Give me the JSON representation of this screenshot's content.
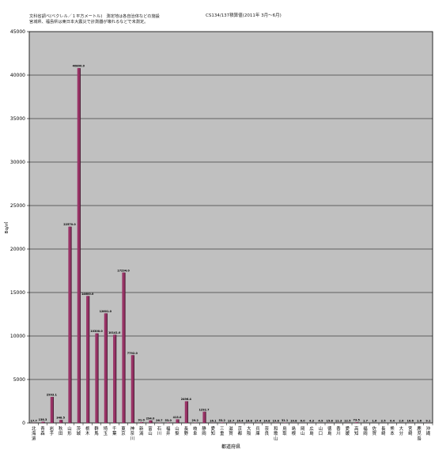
{
  "notes": {
    "line1": "文科省調べ(ベクレル／１平方メートル)　測定地は各自治体などの施設",
    "line2": "宮城県、福島県は東日本大震災で計測器が壊れるなどで未測定。",
    "title": "CS134/137積算値(2011年 3月～6月)"
  },
  "colors": {
    "plot_bg": "#c0c0c0",
    "bar_fill": "#993366",
    "bar_shadow": "#4a1832",
    "grid": "#000000"
  },
  "chart_data": {
    "type": "bar",
    "title": "CS134/137積算値(2011年 3月～6月)",
    "xlabel": "都道府県",
    "ylabel": "Bq/㎡",
    "ylim": [
      0,
      45000
    ],
    "yticks": [
      0,
      5000,
      10000,
      15000,
      20000,
      25000,
      30000,
      35000,
      40000,
      45000
    ],
    "grid": true,
    "legend": "none",
    "categories": [
      "北海道",
      "青森",
      "岩手",
      "秋田",
      "山形",
      "茨城",
      "栃木",
      "群馬",
      "埼玉",
      "千葉",
      "東京",
      "神奈川",
      "新潟",
      "富山",
      "石川",
      "福井",
      "山梨",
      "長野",
      "岐阜",
      "静岡",
      "愛知",
      "三重",
      "滋賀",
      "京都",
      "大阪",
      "兵庫",
      "奈良",
      "和歌山",
      "鳥取",
      "島根",
      "岡山",
      "広島",
      "山口",
      "徳島",
      "香川",
      "愛媛",
      "高知",
      "福岡",
      "佐賀",
      "長崎",
      "熊本",
      "大分",
      "宮崎",
      "鹿児島",
      "沖縄"
    ],
    "values": [
      17.7,
      138.3,
      2993.1,
      348.5,
      22570.0,
      40800.0,
      14600.0,
      10300.0,
      12601.0,
      10141.0,
      17294.0,
      7792.0,
      91.0,
      294.0,
      26.7,
      53.0,
      413.0,
      2496.4,
      29.2,
      1292.7,
      16.1,
      53.2,
      13.7,
      16.4,
      16.8,
      17.4,
      14.8,
      19.8,
      31.1,
      10.8,
      6.0,
      4.3,
      4.9,
      15.8,
      11.3,
      12.5,
      73.5,
      1.7,
      1.6,
      2.5,
      0.4,
      2.0,
      10.6,
      1.6,
      9.1
    ],
    "data_labels": [
      "17.7",
      "138.3",
      "2993.1",
      "348.5",
      "22570.0",
      "40800.0",
      "14600.0",
      "10300.0",
      "12601.0",
      "10141.0",
      "17294.0",
      "7792.0",
      "91.0",
      "294.0",
      "26.7",
      "53.0",
      "413.0",
      "2496.4",
      "29.2",
      "1292.7",
      "16.1",
      "53.2",
      "13.7",
      "16.4",
      "16.8",
      "17.4",
      "14.8",
      "19.8",
      "31.1",
      "10.8",
      "6.0",
      "4.3",
      "4.9",
      "15.8",
      "11.3",
      "12.5",
      "73.5",
      "1.7",
      "1.6",
      "2.5",
      "0.4",
      "2.0",
      "10.6",
      "1.6",
      "9.1"
    ]
  }
}
